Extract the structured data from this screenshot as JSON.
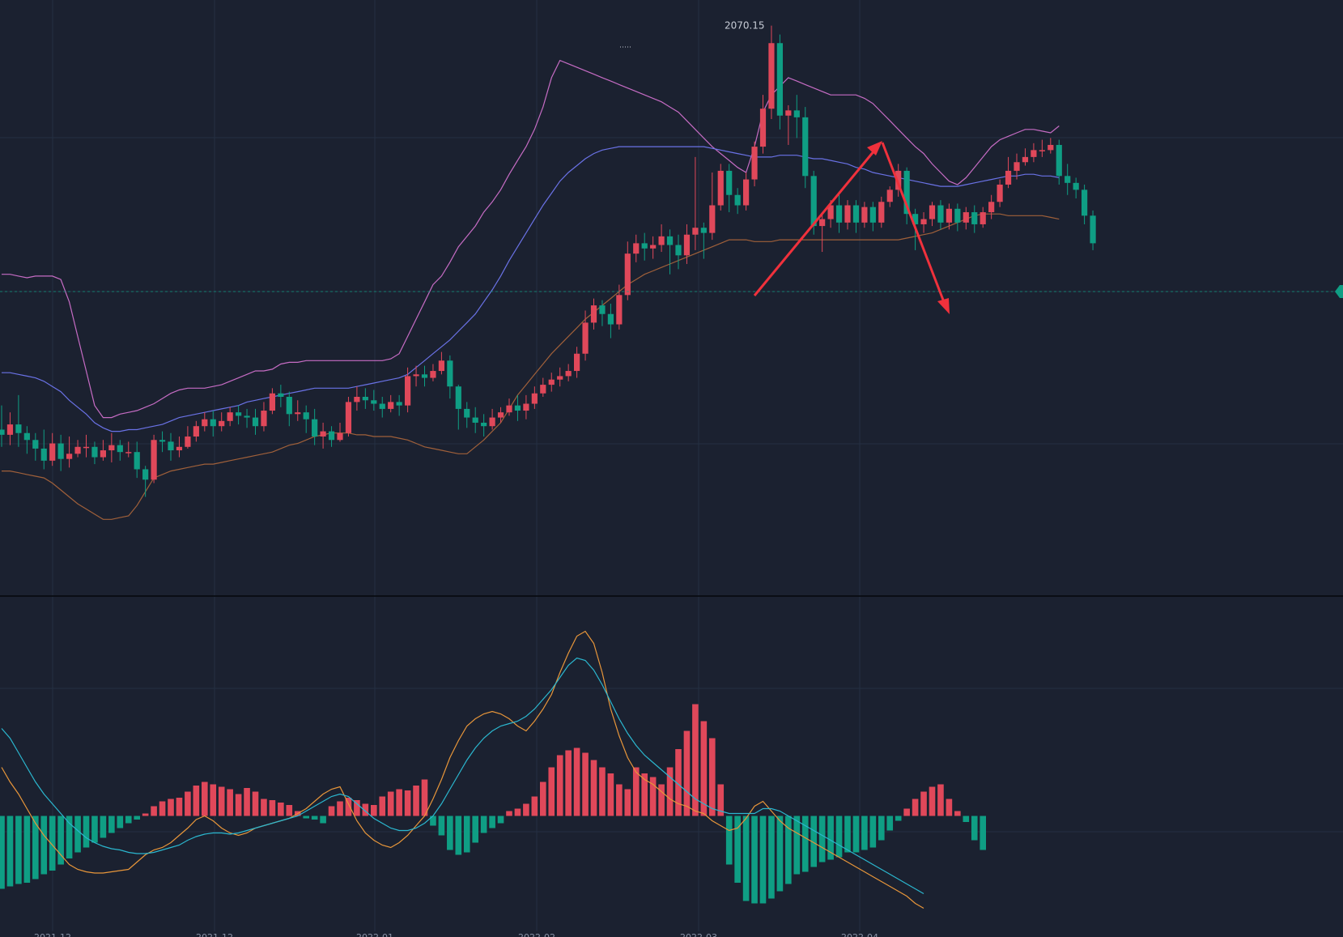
{
  "chart_data": {
    "type": "candlestick",
    "colors": {
      "background": "#1b2130",
      "up": "#e0485a",
      "down": "#0f9e84",
      "bb_upper": "#c66cc4",
      "bb_middle": "#6a72e6",
      "bb_lower": "#a0603a",
      "macd_dif": "#e8963a",
      "macd_dea": "#2bb7cf",
      "annotation": "#f0313c",
      "last_price_marker": "#0f9e84",
      "grid": "#243042",
      "divider": "#05070a"
    },
    "grid": true,
    "x_ticks": [
      "2021-12",
      "2021-12",
      "2022-01",
      "2022-02",
      "2022-03",
      "2022-04"
    ],
    "highest_label": "2070.15",
    "price_range": [
      1740,
      2085
    ],
    "candles": [
      [
        1836,
        1833,
        1826,
        1850
      ],
      [
        1833,
        1839,
        1827,
        1846
      ],
      [
        1839,
        1834,
        1826,
        1856
      ],
      [
        1834,
        1830,
        1822,
        1838
      ],
      [
        1830,
        1825,
        1818,
        1834
      ],
      [
        1825,
        1818,
        1813,
        1836
      ],
      [
        1818,
        1828,
        1815,
        1834
      ],
      [
        1828,
        1819,
        1812,
        1833
      ],
      [
        1819,
        1822,
        1814,
        1832
      ],
      [
        1822,
        1826,
        1820,
        1830
      ],
      [
        1826,
        1826,
        1820,
        1833
      ],
      [
        1826,
        1820,
        1816,
        1829
      ],
      [
        1820,
        1824,
        1818,
        1830
      ],
      [
        1824,
        1827,
        1817,
        1834
      ],
      [
        1827,
        1823,
        1818,
        1830
      ],
      [
        1823,
        1823,
        1820,
        1829
      ],
      [
        1823,
        1813,
        1808,
        1829
      ],
      [
        1813,
        1807,
        1797,
        1815
      ],
      [
        1807,
        1830,
        1805,
        1833
      ],
      [
        1830,
        1829,
        1823,
        1835
      ],
      [
        1829,
        1824,
        1818,
        1834
      ],
      [
        1824,
        1826,
        1820,
        1832
      ],
      [
        1826,
        1832,
        1825,
        1838
      ],
      [
        1832,
        1838,
        1829,
        1841
      ],
      [
        1838,
        1842,
        1835,
        1846
      ],
      [
        1842,
        1838,
        1832,
        1847
      ],
      [
        1838,
        1841,
        1835,
        1846
      ],
      [
        1841,
        1846,
        1838,
        1849
      ],
      [
        1846,
        1844,
        1839,
        1850
      ],
      [
        1844,
        1843,
        1837,
        1848
      ],
      [
        1843,
        1838,
        1833,
        1848
      ],
      [
        1838,
        1847,
        1835,
        1852
      ],
      [
        1847,
        1857,
        1845,
        1860
      ],
      [
        1857,
        1855,
        1849,
        1862
      ],
      [
        1855,
        1845,
        1838,
        1858
      ],
      [
        1845,
        1846,
        1841,
        1853
      ],
      [
        1846,
        1842,
        1834,
        1850
      ],
      [
        1842,
        1832,
        1827,
        1848
      ],
      [
        1832,
        1835,
        1825,
        1840
      ],
      [
        1835,
        1830,
        1826,
        1838
      ],
      [
        1830,
        1834,
        1829,
        1840
      ],
      [
        1834,
        1852,
        1832,
        1855
      ],
      [
        1852,
        1855,
        1847,
        1861
      ],
      [
        1855,
        1853,
        1848,
        1860
      ],
      [
        1853,
        1851,
        1847,
        1859
      ],
      [
        1851,
        1848,
        1843,
        1855
      ],
      [
        1848,
        1852,
        1846,
        1856
      ],
      [
        1852,
        1850,
        1844,
        1856
      ],
      [
        1850,
        1867,
        1846,
        1872
      ],
      [
        1867,
        1868,
        1861,
        1873
      ],
      [
        1868,
        1866,
        1861,
        1873
      ],
      [
        1866,
        1870,
        1864,
        1874
      ],
      [
        1870,
        1876,
        1868,
        1881
      ],
      [
        1876,
        1861,
        1854,
        1879
      ],
      [
        1861,
        1848,
        1836,
        1862
      ],
      [
        1848,
        1843,
        1837,
        1852
      ],
      [
        1843,
        1840,
        1834,
        1849
      ],
      [
        1840,
        1838,
        1832,
        1845
      ],
      [
        1838,
        1843,
        1836,
        1848
      ],
      [
        1843,
        1846,
        1840,
        1849
      ],
      [
        1846,
        1850,
        1844,
        1854
      ],
      [
        1850,
        1847,
        1841,
        1856
      ],
      [
        1847,
        1851,
        1842,
        1856
      ],
      [
        1851,
        1857,
        1848,
        1861
      ],
      [
        1857,
        1862,
        1855,
        1866
      ],
      [
        1862,
        1865,
        1858,
        1869
      ],
      [
        1865,
        1867,
        1861,
        1872
      ],
      [
        1867,
        1870,
        1864,
        1874
      ],
      [
        1870,
        1880,
        1866,
        1884
      ],
      [
        1880,
        1898,
        1876,
        1905
      ],
      [
        1898,
        1908,
        1894,
        1912
      ],
      [
        1908,
        1903,
        1896,
        1911
      ],
      [
        1903,
        1897,
        1889,
        1909
      ],
      [
        1897,
        1914,
        1894,
        1920
      ],
      [
        1914,
        1938,
        1911,
        1945
      ],
      [
        1938,
        1944,
        1933,
        1949
      ],
      [
        1944,
        1941,
        1934,
        1950
      ],
      [
        1941,
        1943,
        1935,
        1948
      ],
      [
        1943,
        1948,
        1939,
        1955
      ],
      [
        1948,
        1943,
        1926,
        1952
      ],
      [
        1943,
        1937,
        1929,
        1949
      ],
      [
        1937,
        1949,
        1932,
        1955
      ],
      [
        1949,
        1953,
        1940,
        1994
      ],
      [
        1953,
        1950,
        1935,
        1956
      ],
      [
        1950,
        1966,
        1946,
        1985
      ],
      [
        1966,
        1986,
        1963,
        1990
      ],
      [
        1986,
        1972,
        1962,
        1990
      ],
      [
        1972,
        1966,
        1961,
        1976
      ],
      [
        1966,
        1981,
        1963,
        1985
      ],
      [
        1981,
        2000,
        1977,
        2003
      ],
      [
        2000,
        2022,
        1996,
        2030
      ],
      [
        2022,
        2060,
        2016,
        2070.15
      ],
      [
        2060,
        2018,
        2010,
        2065
      ],
      [
        2018,
        2021,
        2001,
        2024
      ],
      [
        2021,
        2017,
        2005,
        2030
      ],
      [
        2017,
        1983,
        1976,
        2023
      ],
      [
        1983,
        1954,
        1949,
        1986
      ],
      [
        1954,
        1958,
        1939,
        1961
      ],
      [
        1958,
        1966,
        1953,
        1969
      ],
      [
        1966,
        1956,
        1950,
        1974
      ],
      [
        1956,
        1966,
        1952,
        1969
      ],
      [
        1966,
        1956,
        1950,
        1969
      ],
      [
        1956,
        1965,
        1953,
        1968
      ],
      [
        1965,
        1956,
        1951,
        1968
      ],
      [
        1956,
        1968,
        1953,
        1971
      ],
      [
        1968,
        1975,
        1965,
        1977
      ],
      [
        1975,
        1986,
        1971,
        1990
      ],
      [
        1986,
        1961,
        1955,
        1988
      ],
      [
        1961,
        1955,
        1940,
        1964
      ],
      [
        1955,
        1958,
        1950,
        1962
      ],
      [
        1958,
        1966,
        1954,
        1968
      ],
      [
        1966,
        1956,
        1952,
        1969
      ],
      [
        1956,
        1964,
        1952,
        1967
      ],
      [
        1964,
        1956,
        1951,
        1967
      ],
      [
        1956,
        1962,
        1952,
        1965
      ],
      [
        1962,
        1955,
        1950,
        1966
      ],
      [
        1955,
        1962,
        1953,
        1965
      ],
      [
        1962,
        1968,
        1958,
        1972
      ],
      [
        1968,
        1978,
        1965,
        1981
      ],
      [
        1978,
        1986,
        1976,
        1994
      ],
      [
        1986,
        1991,
        1981,
        1996
      ],
      [
        1991,
        1994,
        1989,
        1999
      ],
      [
        1994,
        1998,
        1991,
        2002
      ],
      [
        1998,
        1998,
        1994,
        2004
      ],
      [
        1998,
        2001,
        1996,
        2005
      ],
      [
        2001,
        1983,
        1978,
        2004
      ],
      [
        1983,
        1979,
        1972,
        1990
      ],
      [
        1979,
        1975,
        1970,
        1982
      ],
      [
        1975,
        1960,
        1955,
        1978
      ],
      [
        1960,
        1944,
        1940,
        1963
      ]
    ],
    "bollinger": {
      "upper": [
        1926,
        1926,
        1925,
        1924,
        1925,
        1925,
        1925,
        1923,
        1910,
        1890,
        1870,
        1850,
        1843,
        1843,
        1845,
        1846,
        1847,
        1849,
        1851,
        1854,
        1857,
        1859,
        1860,
        1860,
        1860,
        1861,
        1862,
        1864,
        1866,
        1868,
        1870,
        1870,
        1871,
        1874,
        1875,
        1875,
        1876,
        1876,
        1876,
        1876,
        1876,
        1876,
        1876,
        1876,
        1876,
        1876,
        1877,
        1880,
        1890,
        1900,
        1910,
        1920,
        1925,
        1933,
        1942,
        1948,
        1954,
        1962,
        1968,
        1975,
        1984,
        1992,
        2000,
        2010,
        2023,
        2040,
        2050,
        2048,
        2046,
        2044,
        2042,
        2040,
        2038,
        2036,
        2034,
        2032,
        2030,
        2028,
        2026,
        2023,
        2020,
        2015,
        2010,
        2005,
        2000,
        1996,
        1992,
        1988,
        1985,
        2000,
        2020,
        2030,
        2035,
        2040,
        2038,
        2036,
        2034,
        2032,
        2030,
        2030,
        2030,
        2030,
        2028,
        2025,
        2020,
        2015,
        2010,
        2005,
        2000,
        1996,
        1990,
        1985,
        1980,
        1978,
        1982,
        1988,
        1994,
        2000,
        2004,
        2006,
        2008,
        2010,
        2010,
        2009,
        2008,
        2012
      ],
      "middle": [
        1869,
        1869,
        1868,
        1867,
        1866,
        1864,
        1861,
        1858,
        1853,
        1849,
        1845,
        1840,
        1837,
        1835,
        1835,
        1836,
        1836,
        1837,
        1838,
        1839,
        1841,
        1843,
        1844,
        1845,
        1846,
        1847,
        1848,
        1849,
        1850,
        1852,
        1853,
        1854,
        1855,
        1856,
        1857,
        1858,
        1859,
        1860,
        1860,
        1860,
        1860,
        1860,
        1861,
        1862,
        1863,
        1864,
        1865,
        1866,
        1868,
        1872,
        1876,
        1880,
        1884,
        1888,
        1893,
        1898,
        1903,
        1910,
        1917,
        1925,
        1934,
        1942,
        1950,
        1958,
        1966,
        1973,
        1980,
        1985,
        1989,
        1993,
        1996,
        1998,
        1999,
        2000,
        2000,
        2000,
        2000,
        2000,
        2000,
        2000,
        2000,
        2000,
        2000,
        2000,
        1999,
        1998,
        1997,
        1996,
        1995,
        1994,
        1994,
        1994,
        1995,
        1995,
        1995,
        1994,
        1993,
        1993,
        1992,
        1991,
        1990,
        1988,
        1987,
        1985,
        1984,
        1983,
        1982,
        1981,
        1980,
        1979,
        1978,
        1977,
        1977,
        1977,
        1978,
        1979,
        1980,
        1981,
        1982,
        1983,
        1983,
        1984,
        1984,
        1983,
        1983,
        1982
      ],
      "lower": [
        1812,
        1812,
        1811,
        1810,
        1809,
        1808,
        1805,
        1801,
        1797,
        1793,
        1790,
        1787,
        1784,
        1784,
        1785,
        1786,
        1792,
        1800,
        1808,
        1810,
        1812,
        1813,
        1814,
        1815,
        1816,
        1816,
        1817,
        1818,
        1819,
        1820,
        1821,
        1822,
        1823,
        1825,
        1827,
        1828,
        1830,
        1832,
        1833,
        1834,
        1834,
        1834,
        1833,
        1833,
        1832,
        1832,
        1832,
        1831,
        1830,
        1828,
        1826,
        1825,
        1824,
        1823,
        1822,
        1822,
        1826,
        1830,
        1835,
        1840,
        1848,
        1856,
        1862,
        1868,
        1874,
        1880,
        1885,
        1890,
        1895,
        1900,
        1904,
        1908,
        1912,
        1916,
        1920,
        1923,
        1926,
        1928,
        1930,
        1932,
        1934,
        1936,
        1938,
        1940,
        1942,
        1944,
        1946,
        1946,
        1946,
        1945,
        1945,
        1945,
        1946,
        1946,
        1946,
        1946,
        1946,
        1946,
        1946,
        1946,
        1946,
        1946,
        1946,
        1946,
        1946,
        1946,
        1946,
        1947,
        1948,
        1949,
        1950,
        1952,
        1954,
        1956,
        1958,
        1960,
        1961,
        1961,
        1961,
        1960,
        1960,
        1960,
        1960,
        1960,
        1959,
        1958
      ]
    },
    "macd": {
      "histogram": [
        -60,
        -58,
        -56,
        -55,
        -52,
        -48,
        -45,
        -40,
        -35,
        -30,
        -26,
        -22,
        -18,
        -14,
        -10,
        -6,
        -3,
        2,
        8,
        12,
        14,
        15,
        20,
        25,
        28,
        26,
        24,
        22,
        18,
        23,
        20,
        14,
        13,
        11,
        9,
        4,
        -2,
        -3,
        -6,
        8,
        12,
        15,
        13,
        10,
        9,
        16,
        20,
        22,
        21,
        25,
        30,
        -8,
        -16,
        -28,
        -32,
        -30,
        -22,
        -14,
        -10,
        -6,
        4,
        6,
        10,
        16,
        28,
        40,
        50,
        54,
        56,
        52,
        46,
        40,
        35,
        26,
        22,
        40,
        35,
        32,
        26,
        40,
        55,
        70,
        92,
        78,
        64,
        26,
        -40,
        -55,
        -70,
        -72,
        -72,
        -68,
        -62,
        -56,
        -48,
        -46,
        -42,
        -38,
        -36,
        -34,
        -30,
        -30,
        -28,
        -26,
        -20,
        -12,
        -4,
        6,
        14,
        20,
        24,
        26,
        14,
        4,
        -5,
        -20,
        -28
      ],
      "dif": [
        40,
        28,
        18,
        6,
        -6,
        -16,
        -24,
        -32,
        -40,
        -44,
        -46,
        -47,
        -47,
        -46,
        -45,
        -44,
        -38,
        -32,
        -28,
        -26,
        -22,
        -16,
        -10,
        -3,
        0,
        -4,
        -10,
        -14,
        -16,
        -14,
        -10,
        -8,
        -6,
        -4,
        -2,
        2,
        6,
        12,
        18,
        22,
        24,
        10,
        -4,
        -14,
        -20,
        -24,
        -26,
        -22,
        -16,
        -8,
        0,
        14,
        30,
        48,
        62,
        74,
        80,
        84,
        86,
        84,
        80,
        74,
        70,
        78,
        88,
        100,
        118,
        134,
        148,
        152,
        142,
        118,
        88,
        66,
        48,
        36,
        30,
        26,
        20,
        14,
        10,
        8,
        4,
        2,
        -4,
        -8,
        -12,
        -10,
        -2,
        8,
        12,
        4,
        -4,
        -10,
        -14,
        -18,
        -22,
        -26,
        -30,
        -34,
        -38,
        -42,
        -46,
        -50,
        -54,
        -58,
        -62,
        -66,
        -72,
        -76
      ],
      "dea": [
        72,
        64,
        52,
        40,
        28,
        18,
        10,
        2,
        -6,
        -12,
        -18,
        -22,
        -25,
        -27,
        -28,
        -30,
        -31,
        -31,
        -30,
        -28,
        -26,
        -24,
        -20,
        -17,
        -15,
        -14,
        -14,
        -15,
        -14,
        -12,
        -10,
        -8,
        -6,
        -4,
        -2,
        0,
        4,
        8,
        12,
        16,
        18,
        16,
        10,
        4,
        -2,
        -6,
        -10,
        -12,
        -12,
        -10,
        -6,
        0,
        10,
        22,
        34,
        46,
        56,
        64,
        70,
        74,
        76,
        78,
        82,
        88,
        96,
        104,
        114,
        124,
        130,
        128,
        120,
        108,
        94,
        80,
        68,
        58,
        50,
        44,
        38,
        32,
        26,
        20,
        14,
        10,
        6,
        4,
        2,
        2,
        2,
        2,
        6,
        6,
        4,
        0,
        -4,
        -8,
        -12,
        -16,
        -20,
        -24,
        -28,
        -32,
        -36,
        -40,
        -44,
        -48,
        -52,
        -56,
        -60,
        -64
      ],
      "range": [
        -95,
        175
      ]
    }
  }
}
